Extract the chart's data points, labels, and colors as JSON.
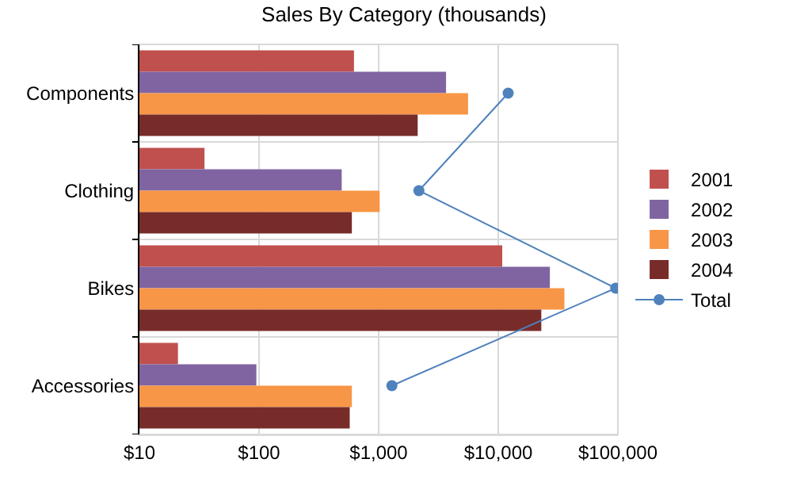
{
  "chart_data": {
    "type": "bar",
    "orientation": "horizontal",
    "title": "Sales By Category (thousands)",
    "categories": [
      "Components",
      "Clothing",
      "Bikes",
      "Accessories"
    ],
    "series": [
      {
        "name": "2001",
        "color": "#c0504d",
        "values": [
          622,
          35,
          10800,
          21
        ]
      },
      {
        "name": "2002",
        "color": "#8064a2",
        "values": [
          3660,
          491,
          27000,
          95
        ]
      },
      {
        "name": "2003",
        "color": "#f79646",
        "values": [
          5590,
          1020,
          35700,
          597
        ]
      },
      {
        "name": "2004",
        "color": "#772c2a",
        "values": [
          2120,
          597,
          22900,
          573
        ]
      },
      {
        "name": "Total",
        "type": "line",
        "marker": "circle",
        "color": "#4f81bd",
        "values": [
          12100,
          2170,
          95900,
          1290
        ]
      }
    ],
    "log": "x",
    "xlim": [
      10,
      100000
    ],
    "xticks": [
      {
        "value": 10,
        "label": "$10"
      },
      {
        "value": 100,
        "label": "$100"
      },
      {
        "value": 1000,
        "label": "$1,000"
      },
      {
        "value": 10000,
        "label": "$10,000"
      },
      {
        "value": 100000,
        "label": "$100,000"
      }
    ],
    "grid": true,
    "legend": "right"
  }
}
